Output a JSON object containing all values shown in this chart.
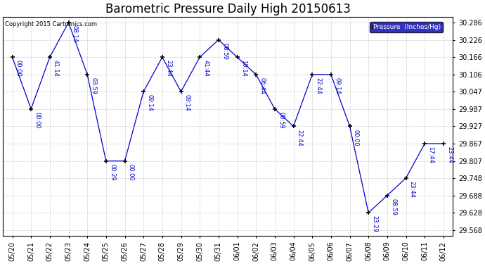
{
  "title": "Barometric Pressure Daily High 20150613",
  "copyright": "Copyright 2015 Cartronics.com",
  "legend_label": "Pressure  (Inches/Hg)",
  "background_color": "#ffffff",
  "plot_bg_color": "#ffffff",
  "line_color": "#0000cc",
  "marker_color": "#000000",
  "legend_bg": "#0000aa",
  "legend_fg": "#ffffff",
  "grid_color": "#cccccc",
  "dates": [
    "05/20",
    "05/21",
    "05/22",
    "05/23",
    "05/24",
    "05/25",
    "05/26",
    "05/27",
    "05/28",
    "05/29",
    "05/30",
    "05/31",
    "06/01",
    "06/02",
    "06/03",
    "06/04",
    "06/05",
    "06/06",
    "06/07",
    "06/08",
    "06/09",
    "06/10",
    "06/11",
    "06/12"
  ],
  "pressures": [
    30.166,
    29.987,
    30.166,
    30.286,
    30.106,
    29.807,
    29.807,
    30.047,
    30.166,
    30.047,
    30.166,
    30.226,
    30.166,
    30.106,
    29.987,
    29.927,
    30.106,
    30.106,
    29.927,
    29.628,
    29.688,
    29.748,
    29.867,
    29.867
  ],
  "time_labels": [
    "00:00",
    "00:00",
    "41:14",
    "08:14",
    "03:59",
    "00:29",
    "00:00",
    "09:14",
    "23:44",
    "09:14",
    "41:44",
    "08:59",
    "10:14",
    "06:44",
    "00:59",
    "22:44",
    "22:44",
    "09:14",
    "00:00",
    "23:29",
    "08:59",
    "23:44",
    "17:44",
    "23:44"
  ],
  "ylim_min": 29.548,
  "ylim_max": 30.306,
  "ytick_values": [
    29.568,
    29.628,
    29.688,
    29.748,
    29.807,
    29.867,
    29.927,
    29.987,
    30.047,
    30.106,
    30.166,
    30.226,
    30.286
  ],
  "title_fontsize": 12,
  "tick_fontsize": 7,
  "label_fontsize": 6,
  "figsize": [
    6.9,
    3.75
  ],
  "dpi": 100
}
